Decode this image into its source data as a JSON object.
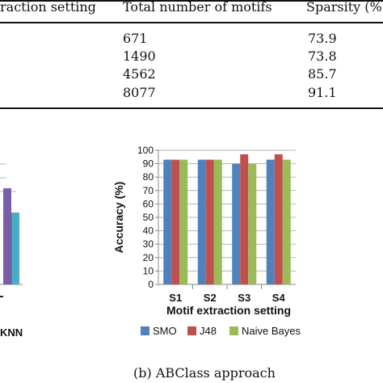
{
  "table": {
    "headers": [
      "raction setting",
      "Total number of motifs",
      "Sparsity (%"
    ],
    "rows": [
      {
        "motifs": "671",
        "sparsity": "73.9"
      },
      {
        "motifs": "1490",
        "sparsity": "73.8"
      },
      {
        "motifs": "4562",
        "sparsity": "85.7"
      },
      {
        "motifs": "8077",
        "sparsity": "91.1"
      }
    ]
  },
  "left_panel": {
    "legend_partial": "KNN",
    "bar_colors": [
      "#7b5ea8",
      "#4bacc6"
    ]
  },
  "caption": "(b) ABClass approach",
  "colors": {
    "SMO": "#4f81bd",
    "J48": "#c0504d",
    "Naive Bayes": "#9bbb59"
  },
  "chart_data": {
    "type": "bar",
    "categories": [
      "S1",
      "S2",
      "S3",
      "S4"
    ],
    "series": [
      {
        "name": "SMO",
        "values": [
          93,
          93,
          90,
          93
        ]
      },
      {
        "name": "J48",
        "values": [
          93,
          93,
          97,
          97
        ]
      },
      {
        "name": "Naive Bayes",
        "values": [
          93,
          93,
          90,
          93
        ]
      }
    ],
    "ylim": [
      0,
      100
    ],
    "yticks": [
      "0",
      "10",
      "20",
      "30",
      "40",
      "50",
      "60",
      "70",
      "80",
      "90",
      "100"
    ],
    "xlabel": "Motif extraction setting",
    "ylabel": "Accuracy (%)",
    "legend": "bottom",
    "grid": true
  }
}
